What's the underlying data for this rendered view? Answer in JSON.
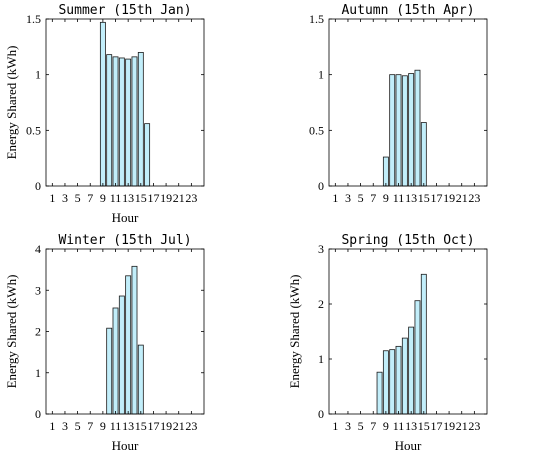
{
  "colors": {
    "bar_fill": "#c2eefa",
    "bar_stroke": "#1a1a1a",
    "axis": "#000000"
  },
  "chart_data": [
    {
      "type": "bar",
      "title": "Summer (15th Jan)",
      "xlabel": "Hour",
      "ylabel": "Energy Shared (kWh)",
      "xlim": [
        0,
        25
      ],
      "ylim": [
        0,
        1.5
      ],
      "xticks": [
        1,
        3,
        5,
        7,
        9,
        11,
        13,
        15,
        17,
        19,
        21,
        23
      ],
      "yticks": [
        0,
        0.5,
        1,
        1.5
      ],
      "ytick_labels": [
        "0",
        "0.5",
        "1",
        "1.5"
      ],
      "x": [
        9,
        10,
        11,
        12,
        13,
        14,
        15,
        16
      ],
      "values": [
        1.47,
        1.18,
        1.16,
        1.15,
        1.14,
        1.16,
        1.2,
        0.56
      ],
      "grid": false
    },
    {
      "type": "bar",
      "title": "Autumn (15th Apr)",
      "xlabel": "",
      "ylabel": "",
      "xlim": [
        0,
        25
      ],
      "ylim": [
        0,
        1.5
      ],
      "xticks": [
        1,
        3,
        5,
        7,
        9,
        11,
        13,
        15,
        17,
        19,
        21,
        23
      ],
      "yticks": [
        0,
        0.5,
        1,
        1.5
      ],
      "ytick_labels": [
        "0",
        "0.5",
        "1",
        "1.5"
      ],
      "x": [
        9,
        10,
        11,
        12,
        13,
        14,
        15
      ],
      "values": [
        0.26,
        1.0,
        1.0,
        0.99,
        1.01,
        1.04,
        0.57
      ],
      "grid": false
    },
    {
      "type": "bar",
      "title": "Winter (15th Jul)",
      "xlabel": "Hour",
      "ylabel": "Energy Shared (kWh)",
      "xlim": [
        0,
        25
      ],
      "ylim": [
        0,
        4
      ],
      "xticks": [
        1,
        3,
        5,
        7,
        9,
        11,
        13,
        15,
        17,
        19,
        21,
        23
      ],
      "yticks": [
        0,
        1,
        2,
        3,
        4
      ],
      "ytick_labels": [
        "0",
        "1",
        "2",
        "3",
        "4"
      ],
      "x": [
        10,
        11,
        12,
        13,
        14,
        15
      ],
      "values": [
        2.08,
        2.57,
        2.86,
        3.35,
        3.58,
        1.67
      ],
      "grid": false
    },
    {
      "type": "bar",
      "title": "Spring (15th Oct)",
      "xlabel": "Hour",
      "ylabel": "Energy Shared (kWh)",
      "xlim": [
        0,
        25
      ],
      "ylim": [
        0,
        3
      ],
      "xticks": [
        1,
        3,
        5,
        7,
        9,
        11,
        13,
        15,
        17,
        19,
        21,
        23
      ],
      "yticks": [
        0,
        1,
        2,
        3
      ],
      "ytick_labels": [
        "0",
        "1",
        "2",
        "3"
      ],
      "x": [
        8,
        9,
        10,
        11,
        12,
        13,
        14,
        15
      ],
      "values": [
        0.76,
        1.15,
        1.17,
        1.23,
        1.38,
        1.58,
        2.06,
        2.54
      ],
      "grid": false
    }
  ]
}
